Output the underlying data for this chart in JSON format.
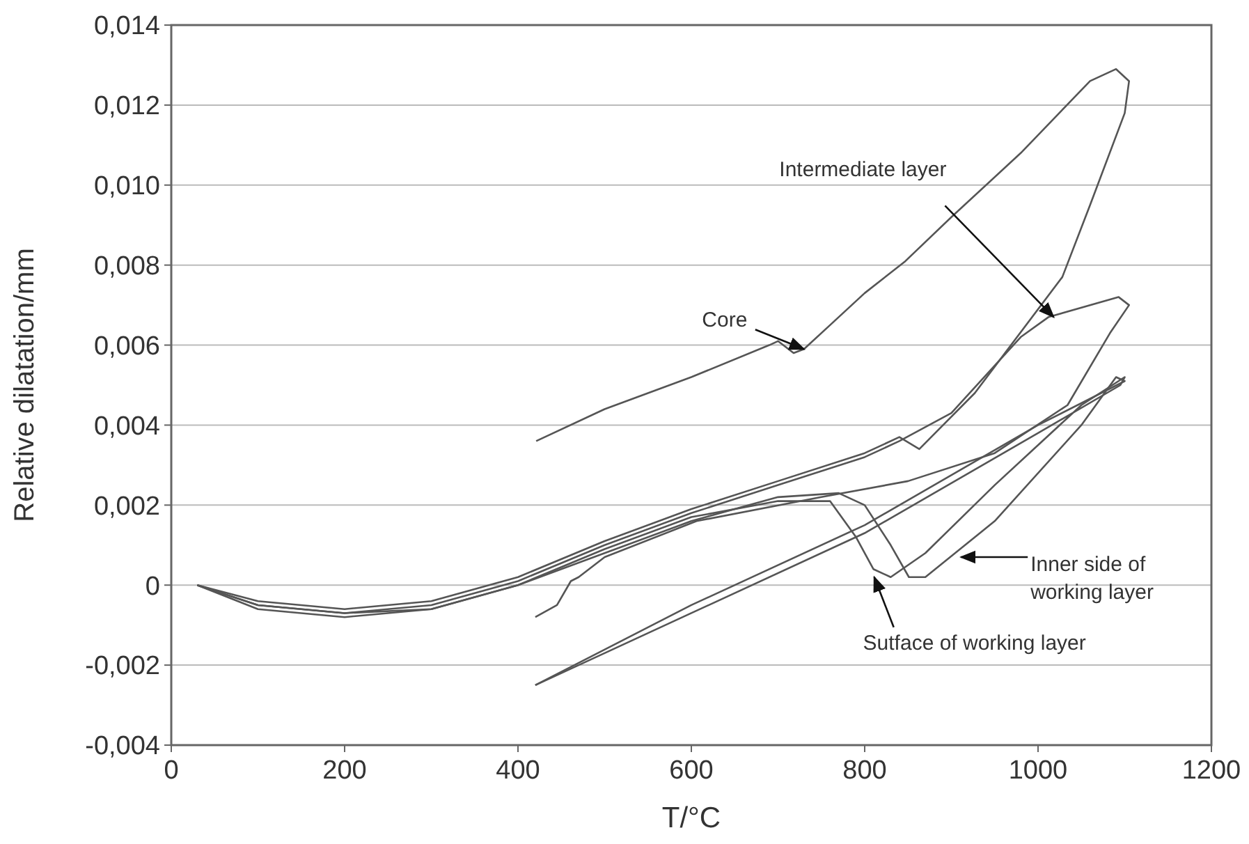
{
  "chart_data": {
    "type": "line",
    "xlabel": "T/°C",
    "ylabel": "Relative dilatation/mm",
    "xlim": [
      0,
      1200
    ],
    "xticks": [
      0,
      200,
      400,
      600,
      800,
      1000,
      1200
    ],
    "ylim": [
      -0.004,
      0.014
    ],
    "yticks": [
      {
        "value": -0.004,
        "label": "-0,004"
      },
      {
        "value": -0.002,
        "label": "-0,002"
      },
      {
        "value": 0,
        "label": "0"
      },
      {
        "value": 0.002,
        "label": "0,002"
      },
      {
        "value": 0.004,
        "label": "0,004"
      },
      {
        "value": 0.006,
        "label": "0,006"
      },
      {
        "value": 0.008,
        "label": "0,008"
      },
      {
        "value": 0.01,
        "label": "0,010"
      },
      {
        "value": 0.012,
        "label": "0,012"
      },
      {
        "value": 0.014,
        "label": "0,014"
      }
    ],
    "grid": "y",
    "marker": "none",
    "line_style": "solid",
    "series": [
      {
        "color": "#555555",
        "x": [
          30,
          100,
          200,
          300,
          400,
          500,
          600,
          700,
          800,
          840,
          863,
          927,
          1028,
          1060,
          1100,
          1105,
          1090,
          1060,
          1020,
          980,
          900,
          847,
          800,
          760,
          730,
          718,
          700,
          690,
          600,
          500,
          421
        ],
        "values": [
          0,
          -0.0004,
          -0.0006,
          -0.0004,
          0.0002,
          0.0011,
          0.0019,
          0.0026,
          0.0033,
          0.0037,
          0.0034,
          0.0048,
          0.0077,
          0.0095,
          0.0118,
          0.0126,
          0.0129,
          0.0126,
          0.0117,
          0.0108,
          0.0092,
          0.0081,
          0.0073,
          0.0065,
          0.0059,
          0.0058,
          0.0061,
          0.006,
          0.0052,
          0.0044,
          0.0036
        ]
      },
      {
        "color": "#555555",
        "x": [
          30,
          100,
          200,
          300,
          400,
          500,
          600,
          700,
          800,
          840,
          900,
          980,
          1012,
          1093,
          1105,
          1083,
          1034,
          950,
          850,
          750,
          606,
          500,
          470,
          461,
          445,
          420
        ],
        "values": [
          0,
          -0.0005,
          -0.0007,
          -0.0005,
          0.0001,
          0.001,
          0.0018,
          0.0025,
          0.0032,
          0.0036,
          0.0043,
          0.0062,
          0.0067,
          0.0072,
          0.007,
          0.0063,
          0.0045,
          0.0033,
          0.0026,
          0.0022,
          0.0016,
          0.0007,
          0.0002,
          0.0001,
          -0.0005,
          -0.0008
        ]
      },
      {
        "color": "#555555",
        "x": [
          30,
          100,
          200,
          300,
          400,
          500,
          600,
          700,
          770,
          800,
          830,
          851,
          870,
          950,
          1050,
          1090,
          1100,
          1000,
          800,
          600,
          420
        ],
        "values": [
          0,
          -0.0006,
          -0.0008,
          -0.0006,
          0,
          0.0008,
          0.0016,
          0.0022,
          0.0023,
          0.002,
          0.001,
          0.0002,
          0.0002,
          0.0016,
          0.004,
          0.0052,
          0.0051,
          0.004,
          0.0015,
          -0.0005,
          -0.0025
        ]
      },
      {
        "color": "#555555",
        "x": [
          30,
          100,
          200,
          300,
          400,
          500,
          600,
          700,
          760,
          790,
          810,
          830,
          870,
          950,
          1050,
          1100,
          1095,
          1000,
          800,
          600,
          420
        ],
        "values": [
          0,
          -0.0005,
          -0.0007,
          -0.0006,
          0,
          0.0009,
          0.0017,
          0.0021,
          0.0021,
          0.0012,
          0.0004,
          0.0002,
          0.0008,
          0.0025,
          0.0045,
          0.0052,
          0.005,
          0.0038,
          0.0013,
          -0.0007,
          -0.0025
        ]
      }
    ],
    "annotations": [
      {
        "text": "Core",
        "x": 730,
        "y": 0.0059
      },
      {
        "text": "Intermediate layer",
        "x": 1018,
        "y": 0.0067
      },
      {
        "text": "Inner side of\nworking layer",
        "x": 911,
        "y": 0.0007
      },
      {
        "text": "Sutface of working layer",
        "x": 811,
        "y": 0.0002
      }
    ]
  }
}
